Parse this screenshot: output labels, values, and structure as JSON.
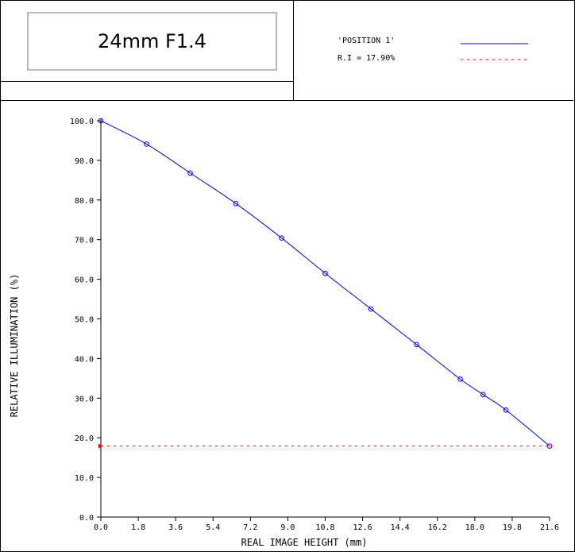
{
  "header": {
    "title": "24mm F1.4",
    "legend": [
      {
        "label": "'POSITION 1'",
        "color": "#0000ff",
        "style": "solid"
      },
      {
        "label": "R.I = 17.90%",
        "color": "#ff0000",
        "style": "dotted"
      }
    ]
  },
  "chart_data": {
    "type": "line",
    "title": "",
    "xlabel": "REAL IMAGE HEIGHT (mm)",
    "ylabel": "RELATIVE ILLUMINATION (%)",
    "xlim": [
      0.0,
      21.6
    ],
    "ylim": [
      0.0,
      100.0
    ],
    "x_ticks": [
      "0.0",
      "1.8",
      "3.6",
      "5.4",
      "7.2",
      "9.0",
      "10.8",
      "12.6",
      "14.4",
      "16.2",
      "18.0",
      "19.8",
      "21.6"
    ],
    "y_ticks": [
      "0.0",
      "10.0",
      "20.0",
      "30.0",
      "40.0",
      "50.0",
      "60.0",
      "70.0",
      "80.0",
      "90.0",
      "100.0"
    ],
    "grid": false,
    "series": [
      {
        "name": "'POSITION 1'",
        "color": "#0000ff",
        "style": "solid",
        "markers": "circle",
        "x": [
          0.0,
          2.2,
          4.3,
          6.5,
          8.7,
          10.8,
          13.0,
          15.2,
          17.3,
          18.4,
          19.5,
          21.6
        ],
        "y": [
          100.0,
          94.1,
          86.8,
          79.1,
          70.4,
          61.5,
          52.5,
          43.5,
          34.8,
          30.9,
          27.0,
          17.9
        ]
      },
      {
        "name": "R.I = 17.90%",
        "color": "#ff0000",
        "style": "dotted",
        "x": [
          0.0,
          21.6
        ],
        "y": [
          17.9,
          17.9
        ]
      }
    ]
  }
}
